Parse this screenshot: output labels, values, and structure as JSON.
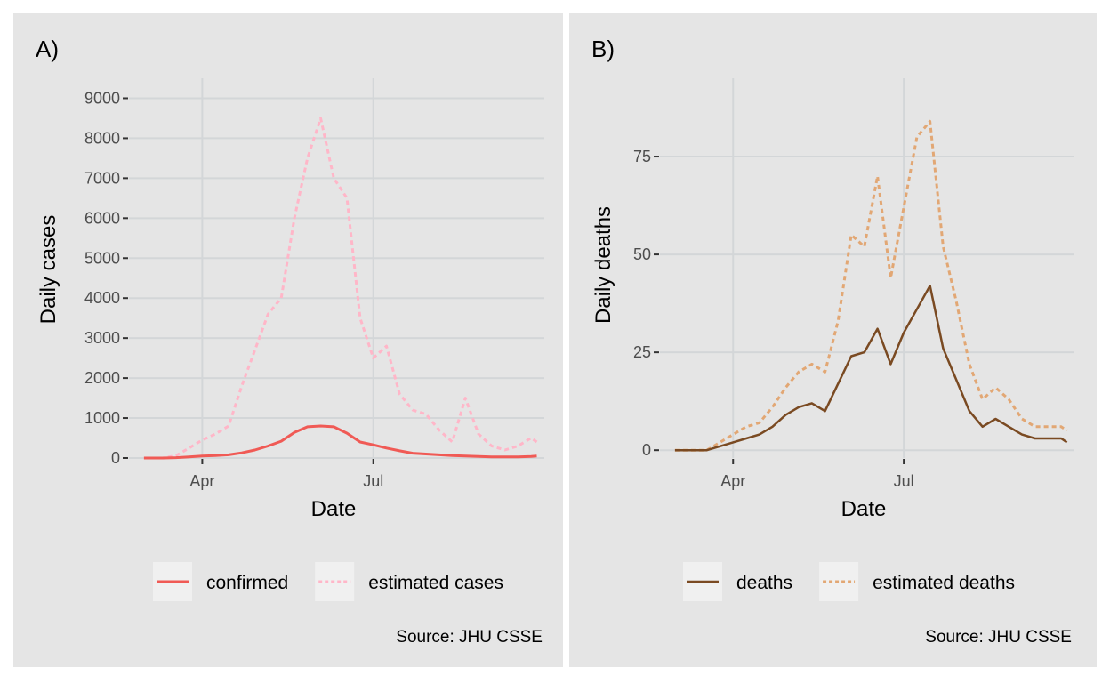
{
  "colors": {
    "panel_bg": "#e5e5e5",
    "grid": "#d3d6d8",
    "confirmed": "#f05a55",
    "estimated_cases": "#ffb6c8",
    "deaths": "#7a4a22",
    "estimated_deaths": "#e2a774"
  },
  "chart_data": [
    {
      "type": "line",
      "tag": "A)",
      "xlabel": "Date",
      "ylabel": "Daily cases",
      "x_ticks": [
        "Apr",
        "Jul"
      ],
      "y_ticks": [
        0,
        1000,
        2000,
        3000,
        4000,
        5000,
        6000,
        7000,
        8000,
        9000
      ],
      "xlim": [
        "2020-02-22",
        "2020-09-30"
      ],
      "ylim": [
        0,
        9500
      ],
      "grid": true,
      "legend_position": "bottom",
      "caption": "Source: JHU CSSE",
      "x": [
        "2020-03-01",
        "2020-03-11",
        "2020-03-18",
        "2020-03-25",
        "2020-04-01",
        "2020-04-08",
        "2020-04-15",
        "2020-04-22",
        "2020-04-29",
        "2020-05-06",
        "2020-05-13",
        "2020-05-20",
        "2020-05-27",
        "2020-06-03",
        "2020-06-10",
        "2020-06-17",
        "2020-06-24",
        "2020-07-01",
        "2020-07-08",
        "2020-07-15",
        "2020-07-22",
        "2020-07-29",
        "2020-08-05",
        "2020-08-12",
        "2020-08-19",
        "2020-08-26",
        "2020-09-02",
        "2020-09-09",
        "2020-09-16",
        "2020-09-23",
        "2020-09-26"
      ],
      "series": [
        {
          "name": "confirmed",
          "values": [
            0,
            0,
            10,
            30,
            50,
            60,
            80,
            130,
            200,
            300,
            420,
            640,
            780,
            800,
            780,
            620,
            400,
            330,
            250,
            180,
            120,
            100,
            80,
            60,
            50,
            40,
            30,
            30,
            30,
            40,
            50
          ]
        },
        {
          "name": "estimated cases",
          "values": [
            0,
            0,
            60,
            250,
            450,
            600,
            800,
            1800,
            2700,
            3600,
            4000,
            6000,
            7500,
            8500,
            7000,
            6500,
            3500,
            2500,
            2800,
            1600,
            1200,
            1100,
            700,
            400,
            1500,
            600,
            300,
            200,
            300,
            500,
            400
          ]
        }
      ]
    },
    {
      "type": "line",
      "tag": "B)",
      "xlabel": "Date",
      "ylabel": "Daily deaths",
      "x_ticks": [
        "Apr",
        "Jul"
      ],
      "y_ticks": [
        0,
        25,
        50,
        75
      ],
      "xlim": [
        "2020-02-22",
        "2020-09-30"
      ],
      "ylim": [
        -2,
        95
      ],
      "grid": true,
      "legend_position": "bottom",
      "caption": "Source: JHU CSSE",
      "x": [
        "2020-03-01",
        "2020-03-11",
        "2020-03-18",
        "2020-03-25",
        "2020-04-01",
        "2020-04-08",
        "2020-04-15",
        "2020-04-22",
        "2020-04-29",
        "2020-05-06",
        "2020-05-13",
        "2020-05-20",
        "2020-05-27",
        "2020-06-03",
        "2020-06-10",
        "2020-06-17",
        "2020-06-24",
        "2020-07-01",
        "2020-07-08",
        "2020-07-15",
        "2020-07-22",
        "2020-07-29",
        "2020-08-05",
        "2020-08-12",
        "2020-08-19",
        "2020-08-26",
        "2020-09-02",
        "2020-09-09",
        "2020-09-16",
        "2020-09-23",
        "2020-09-26"
      ],
      "series": [
        {
          "name": "deaths",
          "values": [
            0,
            0,
            0,
            1,
            2,
            3,
            4,
            6,
            9,
            11,
            12,
            10,
            17,
            24,
            25,
            31,
            22,
            30,
            36,
            42,
            26,
            18,
            10,
            6,
            8,
            6,
            4,
            3,
            3,
            3,
            2
          ]
        },
        {
          "name": "estimated deaths",
          "values": [
            0,
            0,
            0,
            2,
            4,
            6,
            7,
            11,
            16,
            20,
            22,
            20,
            33,
            55,
            52,
            70,
            44,
            62,
            80,
            84,
            52,
            38,
            22,
            13,
            16,
            13,
            8,
            6,
            6,
            6,
            5
          ]
        }
      ]
    }
  ]
}
